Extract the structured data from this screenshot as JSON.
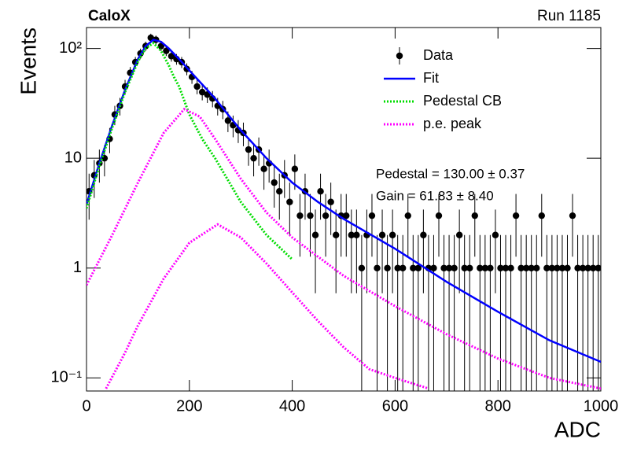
{
  "chart_data": {
    "type": "scatter",
    "title": "CaloX",
    "subtitle": "Run 1185",
    "x_label": "ADC",
    "y_label": "Events",
    "log_y": true,
    "legend": "top-right",
    "xlim": [
      0,
      1000
    ],
    "ylim": [
      0.076,
      155
    ],
    "xticks": [
      0,
      200,
      400,
      600,
      800,
      1000
    ],
    "yticks": [
      {
        "value": 0.1,
        "label": "10⁻¹"
      },
      1,
      10,
      {
        "value": 100,
        "label": "10²"
      }
    ],
    "annotations": [
      "Pedestal = 130.00 ± 0.37",
      "Gain = 61.83 ± 8.40"
    ],
    "series": [
      {
        "name": "Data",
        "color": "#000000",
        "x": [
          5,
          15,
          25,
          35,
          45,
          55,
          65,
          75,
          85,
          95,
          105,
          115,
          125,
          135,
          145,
          155,
          165,
          175,
          185,
          195,
          205,
          215,
          225,
          235,
          245,
          255,
          265,
          275,
          285,
          295,
          305,
          315,
          325,
          335,
          345,
          355,
          365,
          375,
          385,
          395,
          405,
          415,
          425,
          435,
          445,
          455,
          465,
          475,
          485,
          495,
          505,
          515,
          525,
          535,
          545,
          555,
          565,
          575,
          585,
          595,
          605,
          615,
          625,
          635,
          645,
          655,
          665,
          675,
          685,
          695,
          705,
          715,
          725,
          735,
          745,
          755,
          765,
          775,
          785,
          795,
          805,
          815,
          825,
          835,
          845,
          855,
          865,
          875,
          885,
          895,
          905,
          915,
          925,
          935,
          945,
          955,
          965,
          975,
          985,
          995
        ],
        "values": [
          5,
          7,
          9,
          10,
          15,
          25,
          30,
          45,
          60,
          75,
          90,
          105,
          125,
          120,
          105,
          95,
          85,
          80,
          75,
          65,
          55,
          45,
          40,
          38,
          35,
          30,
          28,
          22,
          20,
          18,
          17,
          12,
          10,
          12,
          8,
          9,
          6,
          5,
          7,
          4,
          8,
          3,
          5,
          3,
          2,
          5,
          3,
          4,
          2,
          3,
          3,
          2,
          2,
          1,
          2,
          3,
          1,
          2,
          1,
          2,
          1,
          1,
          3,
          1,
          1,
          2,
          1,
          1,
          3,
          1,
          1,
          1,
          2,
          1,
          1,
          3,
          1,
          1,
          1,
          2,
          1,
          1,
          1,
          3,
          1,
          1,
          1,
          1,
          3,
          1,
          1,
          1,
          1,
          1,
          3,
          1,
          1,
          1,
          1,
          1
        ],
        "errors": [
          2.24,
          2.65,
          3,
          3.16,
          3.87,
          5,
          5.48,
          6.71,
          7.75,
          8.66,
          9.49,
          10.25,
          11.18,
          10.95,
          10.25,
          9.75,
          9.22,
          8.94,
          8.66,
          8.06,
          7.42,
          6.71,
          6.32,
          6.16,
          5.92,
          5.48,
          5.29,
          4.69,
          4.47,
          4.24,
          4.12,
          3.46,
          3.16,
          3.46,
          2.83,
          3,
          2.45,
          2.24,
          2.65,
          2,
          2.83,
          1.73,
          2.24,
          1.73,
          1.41,
          2.24,
          1.73,
          2,
          1.41,
          1.73,
          1.73,
          1.41,
          1.41,
          1,
          1.41,
          1.73,
          1,
          1.41,
          1,
          1.41,
          1,
          1,
          1.73,
          1,
          1,
          1.41,
          1,
          1,
          1.73,
          1,
          1,
          1,
          1.41,
          1,
          1,
          1.73,
          1,
          1,
          1,
          1.41,
          1,
          1,
          1,
          1.73,
          1,
          1,
          1,
          1,
          1.73,
          1,
          1,
          1,
          1,
          1,
          1.73,
          1,
          1,
          1,
          1,
          1
        ]
      },
      {
        "name": "Fit",
        "color": "#0000ff",
        "style": "solid",
        "curves": [
          {
            "x": [
              0,
              25,
              50,
              75,
              100,
              115,
              130,
              145,
              160,
              180,
              200,
              225,
              250,
              275,
              300,
              350,
              400,
              450,
              500,
              600,
              700,
              800,
              900,
              1000
            ],
            "values": [
              3.8,
              9,
              20,
              42,
              80,
              105,
              120,
              115,
              100,
              80,
              63,
              47,
              35,
              25,
              18,
              10,
              6,
              4,
              2.8,
              1.5,
              0.75,
              0.4,
              0.22,
              0.14
            ]
          }
        ]
      },
      {
        "name": "Pedestal CB",
        "color": "#00dd00",
        "style": "dotted",
        "curves": [
          {
            "x": [
              0,
              25,
              50,
              75,
              100,
              115,
              130,
              145,
              160,
              170,
              180,
              200,
              225,
              250,
              300,
              350,
              400
            ],
            "values": [
              3.5,
              8.5,
              19,
              40,
              76,
              100,
              112,
              95,
              70,
              55,
              45,
              25,
              15,
              10,
              4,
              2,
              1.2
            ]
          }
        ]
      },
      {
        "name": "p.e. peak",
        "color": "#ff00ff",
        "style": "dotted",
        "curves": [
          {
            "x": [
              0,
              50,
              100,
              150,
              190,
              220,
              250,
              300,
              350,
              400,
              500,
              600,
              700,
              800,
              900,
              1000
            ],
            "values": [
              0.7,
              2,
              6,
              17,
              28,
              24,
              15,
              6.5,
              3.2,
              1.9,
              0.85,
              0.45,
              0.25,
              0.15,
              0.1,
              0.08
            ]
          },
          {
            "x": [
              38,
              75,
              100,
              150,
              200,
              255,
              300,
              350,
              400,
              450,
              500,
              550,
              600,
              665
            ],
            "values": [
              0.08,
              0.17,
              0.3,
              0.8,
              1.7,
              2.5,
              1.9,
              1.1,
              0.6,
              0.33,
              0.19,
              0.12,
              0.1,
              0.08
            ]
          }
        ]
      }
    ]
  }
}
